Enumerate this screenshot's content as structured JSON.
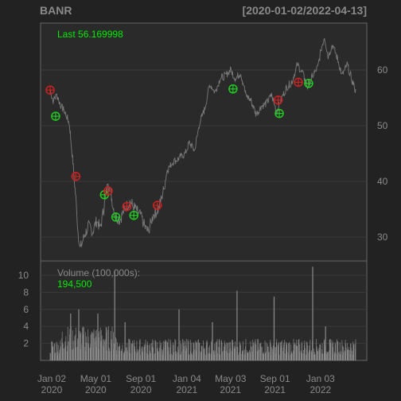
{
  "header": {
    "symbol": "BANR",
    "range": "[2020-01-02/2022-04-13]"
  },
  "colors": {
    "background": "#222222",
    "panel": "#2a2a2a",
    "grid": "#3a3a3a",
    "frame": "#666666",
    "axis_text": "#8a8a8a",
    "price_line": "#7a7a7a",
    "volume_bar": "#8a8a8a",
    "last_label": "#00ee00",
    "buy_marker": "#22cc22",
    "sell_marker": "#cc2222"
  },
  "price_label": {
    "text": "Last 56.169998"
  },
  "volume_label": {
    "title": "Volume (100,000s):",
    "value": "194,500"
  },
  "chart_data": [
    {
      "type": "line",
      "title": "BANR",
      "x_range": [
        "2020-01-02",
        "2022-04-13"
      ],
      "y_axis_side": "right",
      "yticks": [
        30,
        40,
        50,
        60
      ],
      "ylim": [
        25,
        69
      ],
      "grid": true,
      "x_labels": [
        {
          "top": "Jan 02",
          "bottom": "2020",
          "date": "2020-01-02"
        },
        {
          "top": "May 01",
          "bottom": "2020",
          "date": "2020-05-01"
        },
        {
          "top": "Sep 01",
          "bottom": "2020",
          "date": "2020-09-01"
        },
        {
          "top": "Jan 04",
          "bottom": "2021",
          "date": "2021-01-04"
        },
        {
          "top": "May 03",
          "bottom": "2021",
          "date": "2021-05-03"
        },
        {
          "top": "Sep 01",
          "bottom": "2021",
          "date": "2021-09-01"
        },
        {
          "top": "Jan 03",
          "bottom": "2022",
          "date": "2022-01-03"
        }
      ],
      "close_anchors": [
        {
          "date": "2020-01-02",
          "close": 56.5
        },
        {
          "date": "2020-01-10",
          "close": 54.5
        },
        {
          "date": "2020-01-20",
          "close": 55.5
        },
        {
          "date": "2020-02-01",
          "close": 53.5
        },
        {
          "date": "2020-02-15",
          "close": 52.0
        },
        {
          "date": "2020-02-24",
          "close": 50.0
        },
        {
          "date": "2020-03-06",
          "close": 42.0
        },
        {
          "date": "2020-03-12",
          "close": 37.0
        },
        {
          "date": "2020-03-18",
          "close": 31.0
        },
        {
          "date": "2020-03-24",
          "close": 28.0
        },
        {
          "date": "2020-04-03",
          "close": 30.0
        },
        {
          "date": "2020-04-15",
          "close": 32.0
        },
        {
          "date": "2020-04-27",
          "close": 31.0
        },
        {
          "date": "2020-05-08",
          "close": 33.0
        },
        {
          "date": "2020-05-18",
          "close": 31.5
        },
        {
          "date": "2020-06-01",
          "close": 37.0
        },
        {
          "date": "2020-06-08",
          "close": 40.0
        },
        {
          "date": "2020-06-15",
          "close": 38.0
        },
        {
          "date": "2020-06-26",
          "close": 34.0
        },
        {
          "date": "2020-07-10",
          "close": 33.0
        },
        {
          "date": "2020-07-22",
          "close": 35.0
        },
        {
          "date": "2020-08-07",
          "close": 36.5
        },
        {
          "date": "2020-08-21",
          "close": 35.0
        },
        {
          "date": "2020-09-04",
          "close": 34.0
        },
        {
          "date": "2020-09-18",
          "close": 31.5
        },
        {
          "date": "2020-09-25",
          "close": 31.0
        },
        {
          "date": "2020-10-09",
          "close": 34.0
        },
        {
          "date": "2020-10-23",
          "close": 35.0
        },
        {
          "date": "2020-11-06",
          "close": 38.5
        },
        {
          "date": "2020-11-16",
          "close": 42.0
        },
        {
          "date": "2020-12-01",
          "close": 43.5
        },
        {
          "date": "2020-12-15",
          "close": 44.0
        },
        {
          "date": "2021-01-04",
          "close": 45.0
        },
        {
          "date": "2021-01-15",
          "close": 47.0
        },
        {
          "date": "2021-01-29",
          "close": 45.5
        },
        {
          "date": "2021-02-12",
          "close": 50.5
        },
        {
          "date": "2021-02-26",
          "close": 53.0
        },
        {
          "date": "2021-03-12",
          "close": 57.5
        },
        {
          "date": "2021-03-26",
          "close": 56.0
        },
        {
          "date": "2021-04-09",
          "close": 58.5
        },
        {
          "date": "2021-04-23",
          "close": 59.0
        },
        {
          "date": "2021-05-07",
          "close": 60.0
        },
        {
          "date": "2021-05-21",
          "close": 58.5
        },
        {
          "date": "2021-06-04",
          "close": 59.5
        },
        {
          "date": "2021-06-18",
          "close": 55.5
        },
        {
          "date": "2021-07-02",
          "close": 54.5
        },
        {
          "date": "2021-07-16",
          "close": 52.0
        },
        {
          "date": "2021-07-30",
          "close": 53.5
        },
        {
          "date": "2021-08-13",
          "close": 54.0
        },
        {
          "date": "2021-08-27",
          "close": 55.5
        },
        {
          "date": "2021-09-10",
          "close": 52.5
        },
        {
          "date": "2021-09-24",
          "close": 55.0
        },
        {
          "date": "2021-10-08",
          "close": 57.0
        },
        {
          "date": "2021-10-22",
          "close": 58.0
        },
        {
          "date": "2021-11-05",
          "close": 61.0
        },
        {
          "date": "2021-11-19",
          "close": 59.5
        },
        {
          "date": "2021-12-03",
          "close": 57.0
        },
        {
          "date": "2021-12-17",
          "close": 59.0
        },
        {
          "date": "2021-12-31",
          "close": 60.5
        },
        {
          "date": "2022-01-10",
          "close": 64.0
        },
        {
          "date": "2022-01-18",
          "close": 66.0
        },
        {
          "date": "2022-01-28",
          "close": 62.5
        },
        {
          "date": "2022-02-09",
          "close": 64.5
        },
        {
          "date": "2022-02-23",
          "close": 62.0
        },
        {
          "date": "2022-03-07",
          "close": 59.0
        },
        {
          "date": "2022-03-21",
          "close": 61.0
        },
        {
          "date": "2022-04-04",
          "close": 58.0
        },
        {
          "date": "2022-04-13",
          "close": 56.17
        }
      ],
      "markers": [
        {
          "date": "2020-01-02",
          "price": 56.4,
          "kind": "sell"
        },
        {
          "date": "2020-01-17",
          "price": 51.7,
          "kind": "buy"
        },
        {
          "date": "2020-03-12",
          "price": 40.9,
          "kind": "sell"
        },
        {
          "date": "2020-05-29",
          "price": 37.6,
          "kind": "buy"
        },
        {
          "date": "2020-06-08",
          "price": 38.3,
          "kind": "sell"
        },
        {
          "date": "2020-06-29",
          "price": 33.6,
          "kind": "buy"
        },
        {
          "date": "2020-07-29",
          "price": 35.5,
          "kind": "sell"
        },
        {
          "date": "2020-08-17",
          "price": 33.9,
          "kind": "buy"
        },
        {
          "date": "2020-10-20",
          "price": 35.7,
          "kind": "sell"
        },
        {
          "date": "2021-05-14",
          "price": 56.6,
          "kind": "buy"
        },
        {
          "date": "2021-09-14",
          "price": 54.6,
          "kind": "sell"
        },
        {
          "date": "2021-09-17",
          "price": 52.2,
          "kind": "buy"
        },
        {
          "date": "2021-11-08",
          "price": 57.8,
          "kind": "sell"
        },
        {
          "date": "2021-12-06",
          "price": 57.6,
          "kind": "buy"
        }
      ]
    },
    {
      "type": "bar",
      "title": "Volume (100,000s):",
      "yticks": [
        2,
        4,
        6,
        8,
        10
      ],
      "ylim": [
        0,
        11.5
      ],
      "typical_volume": 1.6,
      "spikes": [
        {
          "date": "2020-02-27",
          "volume": 5.5
        },
        {
          "date": "2020-03-20",
          "volume": 6.0
        },
        {
          "date": "2020-05-11",
          "volume": 5.5
        },
        {
          "date": "2020-06-26",
          "volume": 10.5
        },
        {
          "date": "2020-07-24",
          "volume": 4.5
        },
        {
          "date": "2020-12-18",
          "volume": 6.0
        },
        {
          "date": "2021-03-19",
          "volume": 4.5
        },
        {
          "date": "2021-05-25",
          "volume": 8.2
        },
        {
          "date": "2021-09-03",
          "volume": 7.5
        },
        {
          "date": "2021-12-17",
          "volume": 11.0
        },
        {
          "date": "2022-01-21",
          "volume": 4.0
        }
      ],
      "last_value": 1.945
    }
  ]
}
